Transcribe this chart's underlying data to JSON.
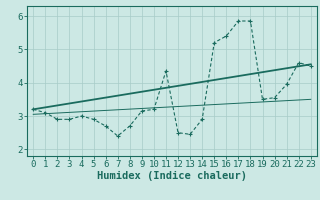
{
  "x_data": [
    0,
    1,
    2,
    3,
    4,
    5,
    6,
    7,
    8,
    9,
    10,
    11,
    12,
    13,
    14,
    15,
    16,
    17,
    18,
    19,
    20,
    21,
    22,
    23
  ],
  "y_line": [
    3.2,
    3.1,
    2.9,
    2.9,
    3.0,
    2.9,
    2.7,
    2.4,
    2.7,
    3.15,
    3.2,
    4.35,
    2.5,
    2.45,
    2.9,
    5.2,
    5.4,
    5.85,
    5.85,
    3.5,
    3.55,
    3.95,
    4.6,
    4.5
  ],
  "bg_color": "#cce8e4",
  "line_color": "#1a6b5e",
  "trend1_start_x": 0,
  "trend1_start_y": 3.2,
  "trend1_end_x": 23,
  "trend1_end_y": 4.55,
  "trend2_start_x": 0,
  "trend2_start_y": 3.05,
  "trend2_end_x": 23,
  "trend2_end_y": 3.5,
  "xlabel": "Humidex (Indice chaleur)",
  "yticks": [
    2,
    3,
    4,
    5,
    6
  ],
  "xticks": [
    0,
    1,
    2,
    3,
    4,
    5,
    6,
    7,
    8,
    9,
    10,
    11,
    12,
    13,
    14,
    15,
    16,
    17,
    18,
    19,
    20,
    21,
    22,
    23
  ],
  "xlim": [
    -0.5,
    23.5
  ],
  "ylim": [
    1.8,
    6.3
  ],
  "grid_color": "#a8ccc8",
  "tick_font_size": 6.5,
  "xlabel_font_size": 7.5
}
